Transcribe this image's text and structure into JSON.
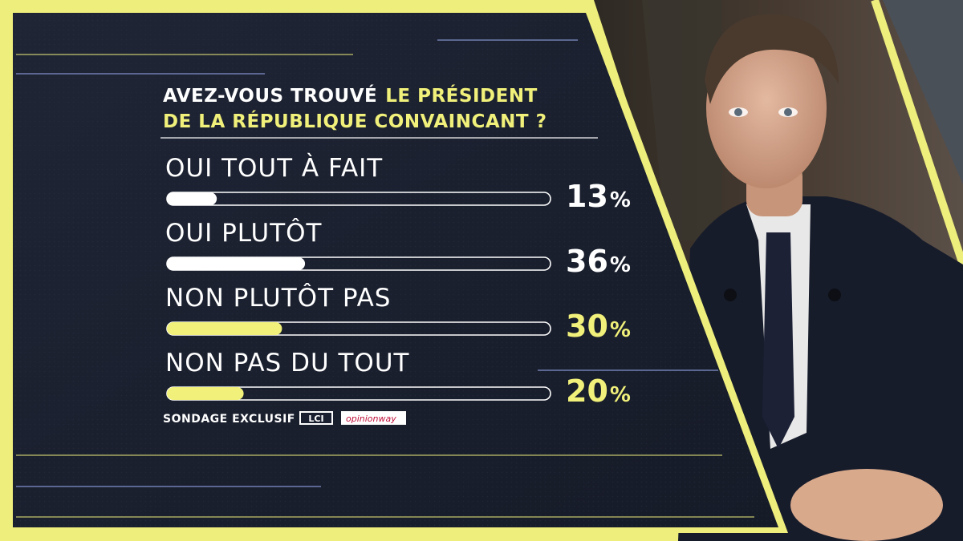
{
  "colors": {
    "panel": "#1b2030",
    "accent": "#f0f07a",
    "white": "#ffffff",
    "frame": "#eeee7c"
  },
  "title": {
    "part1": "AVEZ-VOUS TROUVÉ",
    "part2": "LE PRÉSIDENT",
    "line2": "DE LA RÉPUBLIQUE CONVAINCANT ?"
  },
  "source": {
    "label": "SONDAGE EXCLUSIF",
    "logo_lci": "LCI",
    "logo_opinionway": "opinionway"
  },
  "chart_data": {
    "type": "bar",
    "title": "AVEZ-VOUS TROUVÉ LE PRÉSIDENT DE LA RÉPUBLIQUE CONVAINCANT ?",
    "categories": [
      "OUI TOUT À FAIT",
      "OUI PLUTÔT",
      "NON PLUTÔT PAS",
      "NON PAS DU TOUT"
    ],
    "values": [
      13,
      36,
      30,
      20
    ],
    "unit": "%",
    "bar_colors": [
      "#ffffff",
      "#ffffff",
      "#f0f07a",
      "#f0f07a"
    ],
    "ylim": [
      0,
      100
    ]
  }
}
